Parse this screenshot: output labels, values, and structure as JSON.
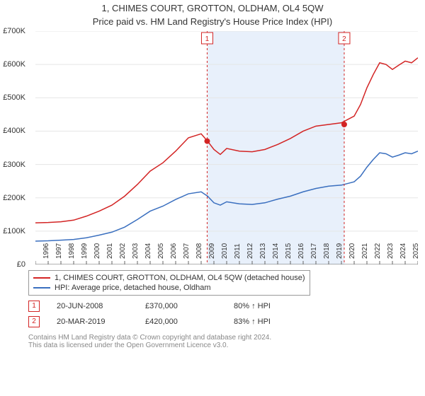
{
  "title": "1, CHIMES COURT, GROTTON, OLDHAM, OL4 5QW",
  "subtitle": "Price paid vs. HM Land Registry's House Price Index (HPI)",
  "chart": {
    "type": "line",
    "background_color": "#ffffff",
    "grid_color": "#e5e5e5",
    "axis_color": "#666666",
    "ylim": [
      0,
      700000
    ],
    "yticks": [
      0,
      100000,
      200000,
      300000,
      400000,
      500000,
      600000,
      700000
    ],
    "ytick_labels": [
      "£0",
      "£100K",
      "£200K",
      "£300K",
      "£400K",
      "£500K",
      "£600K",
      "£700K"
    ],
    "xlim": [
      1995,
      2025
    ],
    "xticks": [
      1995,
      1996,
      1997,
      1998,
      1999,
      2000,
      2001,
      2002,
      2003,
      2004,
      2005,
      2006,
      2007,
      2008,
      2009,
      2010,
      2011,
      2012,
      2013,
      2014,
      2015,
      2016,
      2017,
      2018,
      2019,
      2020,
      2021,
      2022,
      2023,
      2024,
      2025
    ],
    "label_fontsize": 11,
    "series": [
      {
        "name": "1, CHIMES COURT, GROTTON, OLDHAM, OL4 5QW (detached house)",
        "color": "#d32424",
        "line_width": 1.5,
        "values": [
          [
            1995,
            125000
          ],
          [
            1996,
            126000
          ],
          [
            1997,
            128000
          ],
          [
            1998,
            133000
          ],
          [
            1999,
            145000
          ],
          [
            2000,
            160000
          ],
          [
            2001,
            178000
          ],
          [
            2002,
            205000
          ],
          [
            2003,
            240000
          ],
          [
            2004,
            280000
          ],
          [
            2005,
            305000
          ],
          [
            2006,
            340000
          ],
          [
            2007,
            380000
          ],
          [
            2008,
            392000
          ],
          [
            2008.5,
            370000
          ],
          [
            2009,
            345000
          ],
          [
            2009.5,
            330000
          ],
          [
            2010,
            348000
          ],
          [
            2011,
            340000
          ],
          [
            2012,
            338000
          ],
          [
            2013,
            345000
          ],
          [
            2014,
            360000
          ],
          [
            2015,
            378000
          ],
          [
            2016,
            400000
          ],
          [
            2017,
            415000
          ],
          [
            2018,
            420000
          ],
          [
            2019,
            425000
          ],
          [
            2020,
            445000
          ],
          [
            2020.5,
            480000
          ],
          [
            2021,
            530000
          ],
          [
            2021.5,
            570000
          ],
          [
            2022,
            605000
          ],
          [
            2022.5,
            600000
          ],
          [
            2023,
            585000
          ],
          [
            2023.5,
            598000
          ],
          [
            2024,
            610000
          ],
          [
            2024.5,
            605000
          ],
          [
            2025,
            620000
          ]
        ]
      },
      {
        "name": "HPI: Average price, detached house, Oldham",
        "color": "#3a6fbf",
        "line_width": 1.5,
        "values": [
          [
            1995,
            70000
          ],
          [
            1996,
            71000
          ],
          [
            1997,
            73000
          ],
          [
            1998,
            75000
          ],
          [
            1999,
            80000
          ],
          [
            2000,
            88000
          ],
          [
            2001,
            97000
          ],
          [
            2002,
            112000
          ],
          [
            2003,
            135000
          ],
          [
            2004,
            160000
          ],
          [
            2005,
            175000
          ],
          [
            2006,
            195000
          ],
          [
            2007,
            212000
          ],
          [
            2008,
            218000
          ],
          [
            2008.5,
            205000
          ],
          [
            2009,
            185000
          ],
          [
            2009.5,
            178000
          ],
          [
            2010,
            188000
          ],
          [
            2011,
            182000
          ],
          [
            2012,
            180000
          ],
          [
            2013,
            185000
          ],
          [
            2014,
            196000
          ],
          [
            2015,
            205000
          ],
          [
            2016,
            218000
          ],
          [
            2017,
            228000
          ],
          [
            2018,
            235000
          ],
          [
            2019,
            238000
          ],
          [
            2020,
            248000
          ],
          [
            2020.5,
            265000
          ],
          [
            2021,
            292000
          ],
          [
            2021.5,
            315000
          ],
          [
            2022,
            335000
          ],
          [
            2022.5,
            332000
          ],
          [
            2023,
            322000
          ],
          [
            2023.5,
            328000
          ],
          [
            2024,
            335000
          ],
          [
            2024.5,
            332000
          ],
          [
            2025,
            340000
          ]
        ]
      }
    ],
    "shaded_region": {
      "from": 2008.5,
      "to": 2019.25,
      "color": "#e8f0fb"
    },
    "sale_markers": [
      {
        "index": 1,
        "date": "20-JUN-2008",
        "x": 2008.47,
        "y": 370000,
        "price_label": "£370,000",
        "hpi_label": "80% ↑ HPI",
        "color": "#d32424"
      },
      {
        "index": 2,
        "date": "20-MAR-2019",
        "x": 2019.22,
        "y": 420000,
        "price_label": "£420,000",
        "hpi_label": "83% ↑ HPI",
        "color": "#d32424"
      }
    ]
  },
  "legend": {
    "border_color": "#999999",
    "rows": [
      {
        "color": "#d32424",
        "label": "1, CHIMES COURT, GROTTON, OLDHAM, OL4 5QW (detached house)"
      },
      {
        "color": "#3a6fbf",
        "label": "HPI: Average price, detached house, Oldham"
      }
    ]
  },
  "footnote": {
    "line1": "Contains HM Land Registry data © Crown copyright and database right 2024.",
    "line2": "This data is licensed under the Open Government Licence v3.0."
  }
}
